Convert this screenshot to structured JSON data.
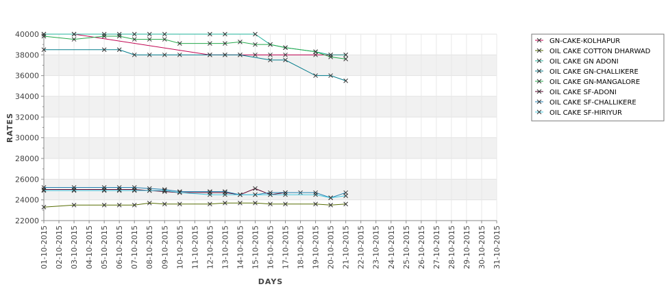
{
  "chart_data": {
    "type": "line",
    "xlabel": "DAYS",
    "ylabel": "RATES",
    "ylim": [
      22000,
      40000
    ],
    "y_ticks": [
      22000,
      24000,
      26000,
      28000,
      30000,
      32000,
      34000,
      36000,
      38000,
      40000
    ],
    "y_tick_labels": [
      "22000",
      "24000",
      "26000",
      "28000",
      "30000",
      "32000",
      "34000",
      "36000",
      "38000",
      "40000"
    ],
    "x": [
      "01-10-2015",
      "02-10-2015",
      "03-10-2015",
      "04-10-2015",
      "05-10-2015",
      "06-10-2015",
      "07-10-2015",
      "08-10-2015",
      "09-10-2015",
      "10-10-2015",
      "11-10-2015",
      "12-10-2015",
      "13-10-2015",
      "14-10-2015",
      "15-10-2015",
      "16-10-2015",
      "17-10-2015",
      "18-10-2015",
      "19-10-2015",
      "20-10-2015",
      "21-10-2015",
      "22-10-2015",
      "23-10-2015",
      "24-10-2015",
      "25-10-2015",
      "26-10-2015",
      "27-10-2015",
      "28-10-2015",
      "29-10-2015",
      "30-10-2015",
      "31-10-2015"
    ],
    "grid": true,
    "banded_background": true,
    "legend_position": "right",
    "series": [
      {
        "name": "GN-CAKE-KOLHAPUR",
        "color": "#c0004f",
        "points": [
          [
            "01-10-2015",
            40000
          ],
          [
            "03-10-2015",
            40000
          ],
          [
            "12-10-2015",
            38000
          ],
          [
            "13-10-2015",
            38000
          ],
          [
            "14-10-2015",
            38000
          ],
          [
            "15-10-2015",
            38000
          ],
          [
            "16-10-2015",
            38000
          ],
          [
            "17-10-2015",
            38000
          ],
          [
            "19-10-2015",
            38000
          ],
          [
            "20-10-2015",
            38000
          ],
          [
            "21-10-2015",
            38000
          ]
        ]
      },
      {
        "name": "OIL CAKE COTTON DHARWAD",
        "color": "#556b00",
        "points": [
          [
            "01-10-2015",
            23300
          ],
          [
            "03-10-2015",
            23500
          ],
          [
            "05-10-2015",
            23500
          ],
          [
            "06-10-2015",
            23500
          ],
          [
            "07-10-2015",
            23500
          ],
          [
            "08-10-2015",
            23700
          ],
          [
            "09-10-2015",
            23600
          ],
          [
            "10-10-2015",
            23600
          ],
          [
            "12-10-2015",
            23600
          ],
          [
            "13-10-2015",
            23700
          ],
          [
            "14-10-2015",
            23700
          ],
          [
            "15-10-2015",
            23700
          ],
          [
            "16-10-2015",
            23600
          ],
          [
            "17-10-2015",
            23600
          ],
          [
            "19-10-2015",
            23600
          ],
          [
            "20-10-2015",
            23500
          ],
          [
            "21-10-2015",
            23600
          ]
        ]
      },
      {
        "name": "OIL CAKE GN ADONI",
        "color": "#1fb09a",
        "points": [
          [
            "01-10-2015",
            40000
          ],
          [
            "03-10-2015",
            40000
          ],
          [
            "05-10-2015",
            40000
          ],
          [
            "06-10-2015",
            40000
          ],
          [
            "07-10-2015",
            40000
          ],
          [
            "08-10-2015",
            40000
          ],
          [
            "09-10-2015",
            40000
          ],
          [
            "12-10-2015",
            40000
          ],
          [
            "13-10-2015",
            40000
          ],
          [
            "15-10-2015",
            40000
          ],
          [
            "16-10-2015",
            39000
          ],
          [
            "17-10-2015",
            38700
          ],
          [
            "19-10-2015",
            38300
          ],
          [
            "20-10-2015",
            38000
          ],
          [
            "21-10-2015",
            38000
          ]
        ]
      },
      {
        "name": "OIL CAKE GN-CHALLIKERE",
        "color": "#007a8a",
        "points": [
          [
            "01-10-2015",
            38500
          ],
          [
            "05-10-2015",
            38500
          ],
          [
            "06-10-2015",
            38500
          ],
          [
            "07-10-2015",
            38000
          ],
          [
            "08-10-2015",
            38000
          ],
          [
            "09-10-2015",
            38000
          ],
          [
            "10-10-2015",
            38000
          ],
          [
            "12-10-2015",
            38000
          ],
          [
            "13-10-2015",
            38000
          ],
          [
            "14-10-2015",
            38000
          ],
          [
            "16-10-2015",
            37500
          ],
          [
            "17-10-2015",
            37500
          ],
          [
            "19-10-2015",
            36000
          ],
          [
            "20-10-2015",
            36000
          ],
          [
            "21-10-2015",
            35500
          ]
        ]
      },
      {
        "name": "OIL CAKE GN-MANGALORE",
        "color": "#22a84a",
        "points": [
          [
            "01-10-2015",
            39800
          ],
          [
            "03-10-2015",
            39500
          ],
          [
            "05-10-2015",
            39800
          ],
          [
            "06-10-2015",
            39800
          ],
          [
            "07-10-2015",
            39500
          ],
          [
            "08-10-2015",
            39500
          ],
          [
            "09-10-2015",
            39500
          ],
          [
            "10-10-2015",
            39100
          ],
          [
            "12-10-2015",
            39100
          ],
          [
            "13-10-2015",
            39100
          ],
          [
            "14-10-2015",
            39250
          ],
          [
            "15-10-2015",
            39000
          ],
          [
            "16-10-2015",
            39000
          ],
          [
            "17-10-2015",
            38700
          ],
          [
            "19-10-2015",
            38300
          ],
          [
            "20-10-2015",
            37800
          ],
          [
            "21-10-2015",
            37600
          ]
        ]
      },
      {
        "name": "OIL CAKE SF-ADONI",
        "color": "#5a0028",
        "points": [
          [
            "01-10-2015",
            25000
          ],
          [
            "03-10-2015",
            25000
          ],
          [
            "05-10-2015",
            25000
          ],
          [
            "06-10-2015",
            25000
          ],
          [
            "07-10-2015",
            25000
          ],
          [
            "08-10-2015",
            24900
          ],
          [
            "09-10-2015",
            24800
          ],
          [
            "10-10-2015",
            24700
          ],
          [
            "12-10-2015",
            24700
          ],
          [
            "13-10-2015",
            24700
          ],
          [
            "14-10-2015",
            24500
          ],
          [
            "15-10-2015",
            25100
          ],
          [
            "16-10-2015",
            24500
          ],
          [
            "17-10-2015",
            24700
          ],
          [
            "18-10-2015",
            24700
          ]
        ]
      },
      {
        "name": "OIL CAKE SF-CHALLIKERE",
        "color": "#1f7fb0",
        "points": [
          [
            "01-10-2015",
            25200
          ],
          [
            "03-10-2015",
            25200
          ],
          [
            "05-10-2015",
            25200
          ],
          [
            "06-10-2015",
            25200
          ],
          [
            "07-10-2015",
            25200
          ],
          [
            "08-10-2015",
            25100
          ],
          [
            "09-10-2015",
            25000
          ],
          [
            "10-10-2015",
            24800
          ],
          [
            "12-10-2015",
            24800
          ],
          [
            "13-10-2015",
            24800
          ],
          [
            "14-10-2015",
            24500
          ],
          [
            "15-10-2015",
            24500
          ],
          [
            "16-10-2015",
            24700
          ],
          [
            "17-10-2015",
            24700
          ],
          [
            "19-10-2015",
            24700
          ],
          [
            "20-10-2015",
            24200
          ],
          [
            "21-10-2015",
            24700
          ]
        ]
      },
      {
        "name": "OIL CAKE SF-HIRIYUR",
        "color": "#40c8e0",
        "points": [
          [
            "01-10-2015",
            24900
          ],
          [
            "03-10-2015",
            24900
          ],
          [
            "05-10-2015",
            24900
          ],
          [
            "06-10-2015",
            24900
          ],
          [
            "07-10-2015",
            24900
          ],
          [
            "08-10-2015",
            24900
          ],
          [
            "09-10-2015",
            24900
          ],
          [
            "10-10-2015",
            24700
          ],
          [
            "12-10-2015",
            24500
          ],
          [
            "13-10-2015",
            24500
          ],
          [
            "14-10-2015",
            24500
          ],
          [
            "15-10-2015",
            24500
          ],
          [
            "16-10-2015",
            24500
          ],
          [
            "17-10-2015",
            24500
          ],
          [
            "19-10-2015",
            24500
          ],
          [
            "20-10-2015",
            24200
          ],
          [
            "21-10-2015",
            24400
          ]
        ]
      }
    ]
  }
}
